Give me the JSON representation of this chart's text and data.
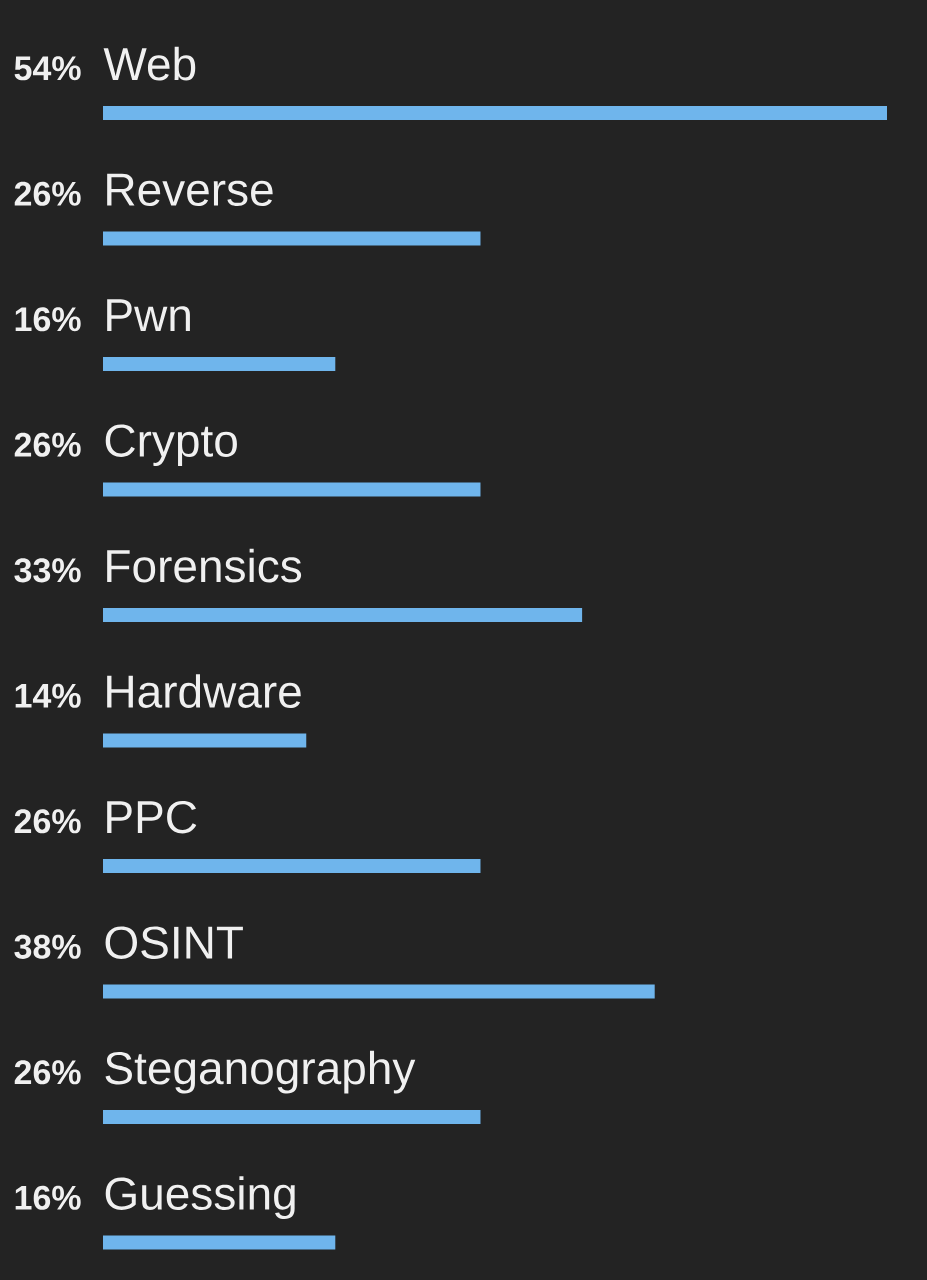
{
  "chart_data": {
    "type": "bar",
    "orientation": "horizontal",
    "color": "#6fb5ec",
    "categories": [
      "Web",
      "Reverse",
      "Pwn",
      "Crypto",
      "Forensics",
      "Hardware",
      "PPC",
      "OSINT",
      "Steganography",
      "Guessing"
    ],
    "values": [
      54,
      26,
      16,
      26,
      33,
      14,
      26,
      38,
      26,
      16
    ],
    "value_labels": [
      "54%",
      "26%",
      "16%",
      "26%",
      "33%",
      "14%",
      "26%",
      "38%",
      "26%",
      "16%"
    ]
  }
}
